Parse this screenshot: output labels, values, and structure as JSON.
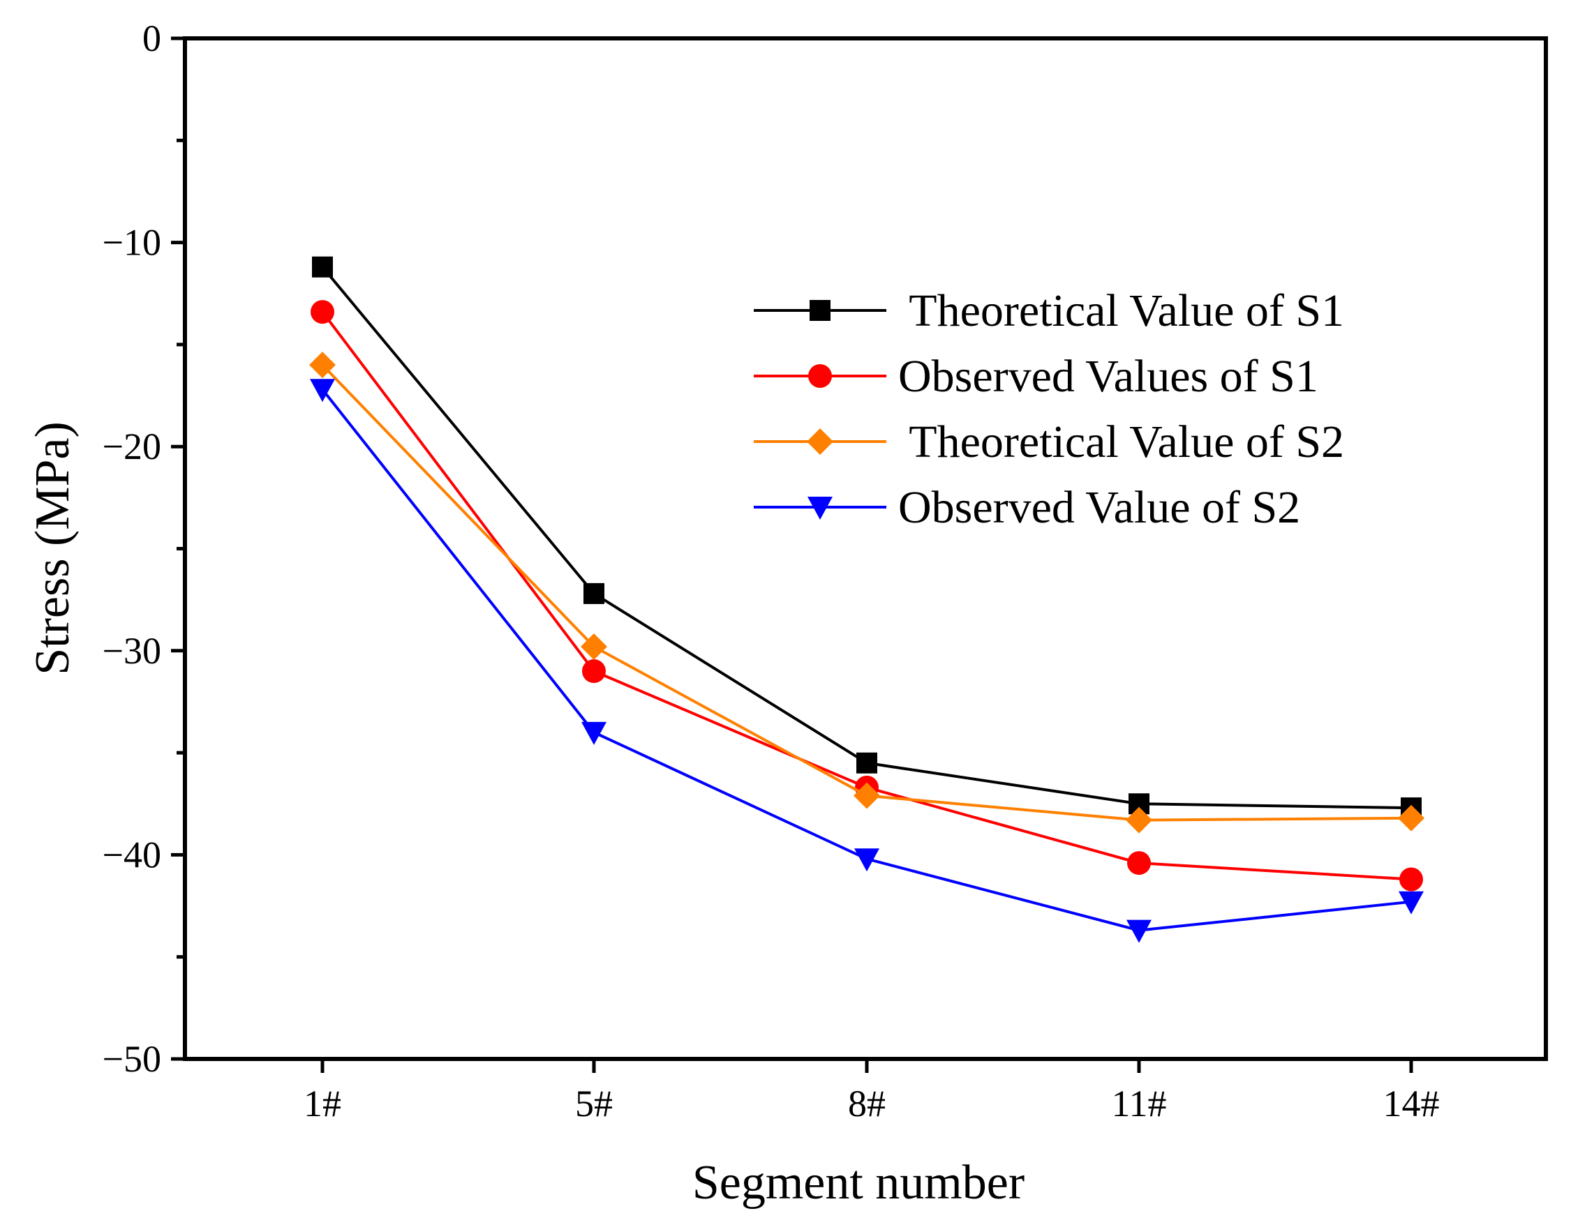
{
  "chart_data": {
    "type": "line",
    "title": "",
    "xlabel": "Segment number",
    "ylabel": "Stress (MPa)",
    "categories": [
      "1#",
      "5#",
      "8#",
      "11#",
      "14#"
    ],
    "ylim": [
      -50,
      0
    ],
    "yticks": [
      0,
      -10,
      -20,
      -30,
      -40,
      -50
    ],
    "ytick_labels": [
      "0",
      "−10",
      "−20",
      "−30",
      "−40",
      "−50"
    ],
    "grid": false,
    "legend_position": "center-right",
    "series": [
      {
        "name": " Theoretical Value of S1",
        "color": "#000000",
        "marker": "square",
        "values": [
          -11.2,
          -27.2,
          -35.5,
          -37.5,
          -37.7
        ]
      },
      {
        "name": "Observed Values of S1",
        "color": "#ff0000",
        "marker": "circle",
        "values": [
          -13.4,
          -31.0,
          -36.7,
          -40.4,
          -41.2
        ]
      },
      {
        "name": " Theoretical Value of S2",
        "color": "#ff8000",
        "marker": "diamond",
        "values": [
          -16.0,
          -29.8,
          -37.1,
          -38.3,
          -38.2
        ]
      },
      {
        "name": "Observed Value of S2",
        "color": "#0000ff",
        "marker": "triangle-down",
        "values": [
          -17.2,
          -34.0,
          -40.2,
          -43.7,
          -42.3
        ]
      }
    ]
  }
}
